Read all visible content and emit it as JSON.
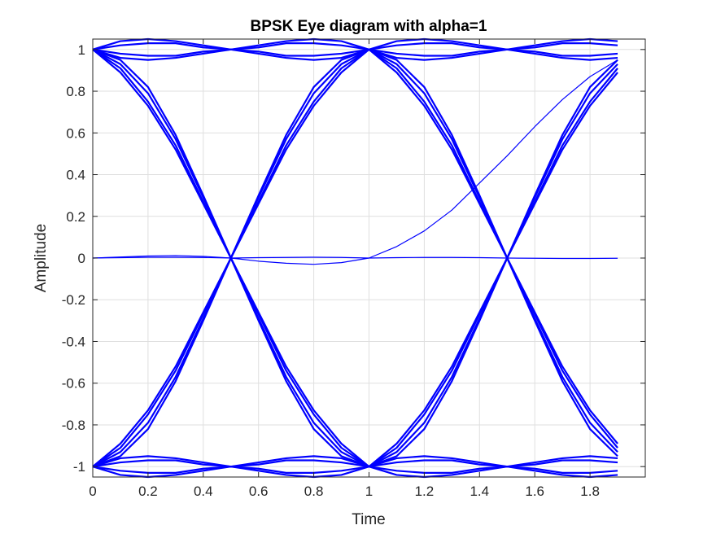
{
  "chart_data": {
    "type": "line",
    "title": "BPSK Eye diagram with alpha=1",
    "xlabel": "Time",
    "ylabel": "Amplitude",
    "xlim": [
      0,
      2
    ],
    "ylim": [
      -1.05,
      1.05
    ],
    "grid": true,
    "x_ticks": [
      0,
      0.2,
      0.4,
      0.6,
      0.8,
      1,
      1.2,
      1.4,
      1.6,
      1.8
    ],
    "x_tick_labels": [
      "0",
      "0.2",
      "0.4",
      "0.6",
      "0.8",
      "1",
      "1.2",
      "1.4",
      "1.6",
      "1.8"
    ],
    "y_ticks": [
      -1,
      -0.8,
      -0.6,
      -0.4,
      -0.2,
      0,
      0.2,
      0.4,
      0.6,
      0.8,
      1
    ],
    "y_tick_labels": [
      "-1",
      "-0.8",
      "-0.6",
      "-0.4",
      "-0.2",
      "0",
      "0.2",
      "0.4",
      "0.6",
      "0.8",
      "1"
    ],
    "x": [
      0,
      0.1,
      0.2,
      0.3,
      0.4,
      0.5,
      0.6,
      0.7,
      0.8,
      0.9,
      1.0,
      1.1,
      1.2,
      1.3,
      1.4,
      1.5,
      1.6,
      1.7,
      1.8,
      1.9
    ],
    "line_color": "#0000ff",
    "series": [
      {
        "values": [
          1,
          1.04,
          1.05,
          1.04,
          1.02,
          1,
          1.02,
          1.04,
          1.05,
          1.04,
          1,
          1.04,
          1.05,
          1.04,
          1.02,
          1,
          1.02,
          1.04,
          1.05,
          1.04
        ]
      },
      {
        "values": [
          1,
          1.02,
          1.03,
          1.03,
          1.01,
          1,
          1.01,
          1.03,
          1.03,
          1.02,
          1,
          1.02,
          1.03,
          1.03,
          1.01,
          1,
          1.01,
          1.03,
          1.03,
          1.02
        ]
      },
      {
        "values": [
          1,
          0.98,
          0.97,
          0.97,
          0.99,
          1,
          0.99,
          0.97,
          0.97,
          0.98,
          1,
          0.98,
          0.97,
          0.97,
          0.99,
          1,
          0.99,
          0.97,
          0.97,
          0.98
        ]
      },
      {
        "values": [
          1,
          0.96,
          0.95,
          0.96,
          0.98,
          1,
          0.98,
          0.96,
          0.95,
          0.96,
          1,
          0.96,
          0.95,
          0.96,
          0.98,
          1,
          0.98,
          0.96,
          0.95,
          0.96
        ]
      },
      {
        "values": [
          -1,
          -0.96,
          -0.95,
          -0.96,
          -0.98,
          -1,
          -0.98,
          -0.96,
          -0.95,
          -0.96,
          -1,
          -0.96,
          -0.95,
          -0.96,
          -0.98,
          -1,
          -0.98,
          -0.96,
          -0.95,
          -0.96
        ]
      },
      {
        "values": [
          -1,
          -0.98,
          -0.97,
          -0.97,
          -0.99,
          -1,
          -0.99,
          -0.97,
          -0.97,
          -0.98,
          -1,
          -0.98,
          -0.97,
          -0.97,
          -0.99,
          -1,
          -0.99,
          -0.97,
          -0.97,
          -0.98
        ]
      },
      {
        "values": [
          -1,
          -1.02,
          -1.03,
          -1.03,
          -1.01,
          -1,
          -1.01,
          -1.03,
          -1.03,
          -1.02,
          -1,
          -1.02,
          -1.03,
          -1.03,
          -1.01,
          -1,
          -1.01,
          -1.03,
          -1.03,
          -1.02
        ]
      },
      {
        "values": [
          -1,
          -1.04,
          -1.05,
          -1.04,
          -1.02,
          -1,
          -1.02,
          -1.04,
          -1.05,
          -1.04,
          -1,
          -1.04,
          -1.05,
          -1.04,
          -1.02,
          -1,
          -1.02,
          -1.04,
          -1.05,
          -1.04
        ]
      },
      {
        "values": [
          1,
          0.95,
          0.82,
          0.59,
          0.3,
          0,
          -0.3,
          -0.59,
          -0.82,
          -0.95,
          -1,
          -0.95,
          -0.82,
          -0.59,
          -0.3,
          0,
          0.3,
          0.59,
          0.82,
          0.95
        ]
      },
      {
        "values": [
          1,
          0.93,
          0.79,
          0.57,
          0.29,
          0,
          -0.29,
          -0.57,
          -0.79,
          -0.93,
          -1,
          -0.93,
          -0.79,
          -0.57,
          -0.29,
          0,
          0.29,
          0.57,
          0.79,
          0.93
        ]
      },
      {
        "values": [
          1,
          0.91,
          0.75,
          0.54,
          0.27,
          0,
          -0.27,
          -0.54,
          -0.75,
          -0.91,
          -1,
          -0.91,
          -0.75,
          -0.54,
          -0.27,
          0,
          0.27,
          0.54,
          0.75,
          0.91
        ]
      },
      {
        "values": [
          1,
          0.89,
          0.73,
          0.52,
          0.26,
          0,
          -0.26,
          -0.52,
          -0.73,
          -0.89,
          -1,
          -0.89,
          -0.73,
          -0.52,
          -0.26,
          0,
          0.26,
          0.52,
          0.73,
          0.89
        ]
      },
      {
        "values": [
          -1,
          -0.95,
          -0.82,
          -0.59,
          -0.3,
          0,
          0.3,
          0.59,
          0.82,
          0.95,
          1,
          0.95,
          0.82,
          0.59,
          0.3,
          0,
          -0.3,
          -0.59,
          -0.82,
          -0.95
        ]
      },
      {
        "values": [
          -1,
          -0.93,
          -0.79,
          -0.57,
          -0.29,
          0,
          0.29,
          0.57,
          0.79,
          0.93,
          1,
          0.93,
          0.79,
          0.57,
          0.29,
          0,
          -0.29,
          -0.57,
          -0.79,
          -0.93
        ]
      },
      {
        "values": [
          -1,
          -0.91,
          -0.75,
          -0.54,
          -0.27,
          0,
          0.27,
          0.54,
          0.75,
          0.91,
          1,
          0.91,
          0.75,
          0.54,
          0.27,
          0,
          -0.27,
          -0.54,
          -0.75,
          -0.91
        ]
      },
      {
        "values": [
          -1,
          -0.89,
          -0.73,
          -0.52,
          -0.26,
          0,
          0.26,
          0.52,
          0.73,
          0.89,
          1,
          0.89,
          0.73,
          0.52,
          0.26,
          0,
          -0.26,
          -0.52,
          -0.73,
          -0.89
        ]
      },
      {
        "values": [
          0,
          0.005,
          0.01,
          0.012,
          0.008,
          0,
          -0.015,
          -0.025,
          -0.03,
          -0.022,
          0,
          0.055,
          0.13,
          0.23,
          0.36,
          0.49,
          0.63,
          0.76,
          0.87,
          0.95
        ]
      },
      {
        "values": [
          0,
          0.002,
          0.004,
          0.004,
          0.003,
          0,
          0.002,
          0.003,
          0.004,
          0.003,
          0,
          0.002,
          0.003,
          0.003,
          0.002,
          0,
          -0.001,
          -0.002,
          -0.002,
          -0.001
        ]
      }
    ]
  }
}
